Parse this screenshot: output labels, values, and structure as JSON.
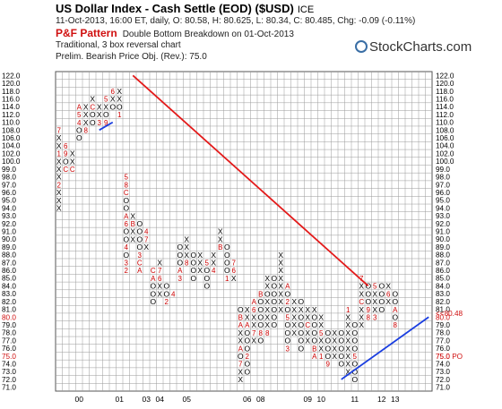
{
  "header": {
    "title": "US Dollar Index - Cash Settle (EOD) ($USD)",
    "exchange": "ICE",
    "quote": "11-Oct-2013, 16:00 ET, daily, O: 80.58, H: 80.625, L: 80.34, C: 80.485, Chg: -0.09 (-0.11%)",
    "pattern_label": "P&F Pattern",
    "pattern_text": "Double Bottom Breakdown on 01-Oct-2013",
    "method": "Traditional, 3 box reversal chart",
    "objective": "Prelim. Bearish Price Obj. (Rev.): 75.0",
    "brand": "StockCharts.com"
  },
  "colors": {
    "x_mark": "#000000",
    "o_mark": "#000000",
    "month_marker": "#cc0000",
    "red_trendline": "#e31a1a",
    "blue_trendline": "#1a3ee0",
    "grid": "#9a9a9a",
    "highlight_label": "#d01010"
  },
  "chart_data": {
    "type": "point-and-figure",
    "box_size": 1.0,
    "reversal": 3,
    "y_range": [
      71.0,
      122.0
    ],
    "y_ticks": [
      71.0,
      72.0,
      73.0,
      74.0,
      75.0,
      76.0,
      77.0,
      78.0,
      79.0,
      80.0,
      81.0,
      82.0,
      83.0,
      84.0,
      85.0,
      86.0,
      87.0,
      88.0,
      89.0,
      90.0,
      91.0,
      92.0,
      93.0,
      94.0,
      95.0,
      96.0,
      97.0,
      98.0,
      99.0,
      100.0,
      102.0,
      104.0,
      106.0,
      108.0,
      110.0,
      112.0,
      114.0,
      116.0,
      118.0,
      120.0,
      122.0
    ],
    "y_tick_labels": [
      "71.0",
      "72.0",
      "73.0",
      "74.0",
      "75.0",
      "76.0",
      "77.0",
      "78.0",
      "79.0",
      "80.0",
      "81.0",
      "82.0",
      "83.0",
      "84.0",
      "85.0",
      "86.0",
      "87.0",
      "88.0",
      "89.0",
      "90.0",
      "91.0",
      "92.0",
      "93.0",
      "94.0",
      "95.0",
      "96.0",
      "97.0",
      "98.0",
      "99.0",
      "100.0",
      "102.0",
      "104.0",
      "106.0",
      "108.0",
      "110.0",
      "112.0",
      "114.0",
      "116.0",
      "118.0",
      "120.0",
      "122.0"
    ],
    "highlighted_tick_labels": [
      "80.0",
      "75.0"
    ],
    "x_year_labels": [
      {
        "label": "00",
        "col": 3
      },
      {
        "label": "01",
        "col": 9
      },
      {
        "label": "03",
        "col": 13
      },
      {
        "label": "04",
        "col": 15
      },
      {
        "label": "05",
        "col": 19
      },
      {
        "label": "06",
        "col": 28
      },
      {
        "label": "08",
        "col": 30
      },
      {
        "label": "09",
        "col": 37
      },
      {
        "label": "10",
        "col": 39
      },
      {
        "label": "11",
        "col": 44
      },
      {
        "label": "12",
        "col": 48
      },
      {
        "label": "13",
        "col": 50
      }
    ],
    "right_annotations": [
      {
        "text": "<<80.48",
        "value": 80.48
      },
      {
        "text": "75.0 PO",
        "value": 75.0
      }
    ],
    "columns": [
      {
        "col": 0,
        "type": "X",
        "marks": [
          "X",
          "X",
          "X",
          "2",
          "X",
          "X",
          "X",
          "1",
          "X",
          "X",
          "7"
        ],
        "low": 94.0,
        "high": 104.0
      },
      {
        "col": 1,
        "type": "O",
        "marks": [
          "C",
          "O",
          "9",
          "6"
        ],
        "low": 99.0,
        "high": 102.0
      },
      {
        "col": 2,
        "type": "X",
        "marks": [
          "C",
          "X",
          "X"
        ],
        "low": 99.0,
        "high": 101.0
      },
      {
        "col": 3,
        "type": "O",
        "marks": [
          "O",
          "O",
          "4",
          "5",
          "A"
        ],
        "low": 106.0,
        "high": 114.0
      },
      {
        "col": 4,
        "type": "X",
        "marks": [
          "8",
          "X",
          "X",
          "X"
        ],
        "low": 108.0,
        "high": 116.0
      },
      {
        "col": 5,
        "type": "O",
        "marks": [
          "O",
          "O",
          "C",
          "X"
        ],
        "low": 110.0,
        "high": 116.0
      },
      {
        "col": 6,
        "type": "X",
        "marks": [
          "3",
          "X",
          "X"
        ],
        "low": 110.0,
        "high": 114.0
      },
      {
        "col": 7,
        "type": "O",
        "marks": [
          "9",
          "O",
          "X",
          "5"
        ],
        "low": 110.0,
        "high": 118.0
      },
      {
        "col": 8,
        "type": "X",
        "marks": [
          "O",
          "X",
          "6"
        ],
        "low": 114.0,
        "high": 118.0
      },
      {
        "col": 9,
        "type": "O",
        "marks": [
          "1",
          "O",
          "X",
          "X"
        ],
        "low": 112.0,
        "high": 120.0
      },
      {
        "col": 10,
        "type": "O",
        "marks": [
          "2",
          "3",
          "O",
          "4",
          "O",
          "O",
          "6",
          "A",
          "O",
          "O",
          "C",
          "8",
          "5"
        ],
        "low": 86.0,
        "high": 112.0
      },
      {
        "col": 11,
        "type": "X",
        "marks": [
          "X",
          "X",
          "B",
          "X"
        ],
        "low": 90.0,
        "high": 99.0
      },
      {
        "col": 12,
        "type": "O",
        "marks": [
          "A",
          "C",
          "3",
          "O",
          "O",
          "O",
          "O"
        ],
        "low": 86.0,
        "high": 98.0
      },
      {
        "col": 13,
        "type": "X",
        "marks": [
          "X",
          "7",
          "4"
        ],
        "low": 89.0,
        "high": 91.0
      },
      {
        "col": 14,
        "type": "O",
        "marks": [
          "O",
          "O",
          "O",
          "A",
          "C"
        ],
        "low": 82.0,
        "high": 89.0
      },
      {
        "col": 15,
        "type": "X",
        "marks": [
          "X",
          "X",
          "6",
          "7",
          "X"
        ],
        "low": 83.0,
        "high": 90.0
      },
      {
        "col": 16,
        "type": "O",
        "marks": [
          "2",
          "O",
          "O"
        ],
        "low": 82.0,
        "high": 84.0
      },
      {
        "col": 17,
        "type": "X",
        "marks": [
          "4"
        ],
        "low": 83.0,
        "high": 83.0
      },
      {
        "col": 18,
        "type": "O",
        "marks": [
          "3",
          "A",
          "O",
          "O",
          "O"
        ],
        "low": 85.0,
        "high": 90.0
      },
      {
        "col": 19,
        "type": "X",
        "marks": [
          "8",
          "X",
          "X",
          "X"
        ],
        "low": 87.0,
        "high": 90.0
      },
      {
        "col": 20,
        "type": "O",
        "marks": [
          "O",
          "O",
          "O",
          "O"
        ],
        "low": 85.0,
        "high": 90.0
      },
      {
        "col": 21,
        "type": "X",
        "marks": [
          "X",
          "X",
          "X"
        ],
        "low": 86.0,
        "high": 89.0
      },
      {
        "col": 22,
        "type": "O",
        "marks": [
          "O",
          "O",
          "O",
          "5"
        ],
        "low": 84.0,
        "high": 88.0
      },
      {
        "col": 23,
        "type": "X",
        "marks": [
          "4",
          "X",
          "X"
        ],
        "low": 86.0,
        "high": 91.0
      },
      {
        "col": 24,
        "type": "O",
        "marks": [
          "B",
          "X",
          "X"
        ],
        "low": 89.0,
        "high": 92.0
      },
      {
        "col": 25,
        "type": "O",
        "marks": [
          "1",
          "O",
          "O",
          "O",
          "O"
        ],
        "low": 85.0,
        "high": 91.0
      },
      {
        "col": 26,
        "type": "X",
        "marks": [
          "X",
          "6",
          "7"
        ],
        "low": 85.0,
        "high": 87.0
      },
      {
        "col": 27,
        "type": "X",
        "marks": [
          "X",
          "X",
          "7",
          "O",
          "A",
          "X",
          "X",
          "A",
          "B",
          "O"
        ],
        "low": 72.0,
        "high": 86.0
      },
      {
        "col": 28,
        "type": "O",
        "marks": [
          "O",
          "O",
          "2",
          "O",
          "O",
          "O",
          "A",
          "X",
          "X"
        ],
        "low": 73.0,
        "high": 81.0
      },
      {
        "col": 29,
        "type": "X",
        "marks": [
          "X",
          "7",
          "X",
          "X",
          "6",
          "A"
        ],
        "low": 77.0,
        "high": 86.0
      },
      {
        "col": 30,
        "type": "O",
        "marks": [
          "O",
          "8",
          "O",
          "O",
          "O",
          "O",
          "B"
        ],
        "low": 77.0,
        "high": 89.0
      },
      {
        "col": 31,
        "type": "X",
        "marks": [
          "8",
          "X",
          "X",
          "X",
          "X",
          "O",
          "X",
          "X"
        ],
        "low": 78.0,
        "high": 88.0
      },
      {
        "col": 32,
        "type": "O",
        "marks": [
          "O",
          "O",
          "O",
          "O",
          "O",
          "O",
          "O"
        ],
        "low": 79.0,
        "high": 89.0
      },
      {
        "col": 33,
        "type": "X",
        "marks": [
          "X",
          "X",
          "X",
          "X",
          "X",
          "X",
          "X",
          "X"
        ],
        "low": 81.0,
        "high": 89.0
      },
      {
        "col": 34,
        "type": "O",
        "marks": [
          "3",
          "O",
          "O",
          "O",
          "5",
          "O",
          "2",
          "O",
          "A"
        ],
        "low": 76.0,
        "high": 89.0
      },
      {
        "col": 35,
        "type": "X",
        "marks": [
          "X",
          "X",
          "X",
          "X",
          "X"
        ],
        "low": 78.0,
        "high": 84.0
      },
      {
        "col": 36,
        "type": "O",
        "marks": [
          "O",
          "O",
          "O",
          "O",
          "O",
          "X",
          "O"
        ],
        "low": 76.0,
        "high": 86.0
      },
      {
        "col": 37,
        "type": "X",
        "marks": [
          "X",
          "X",
          "C",
          "X",
          "X"
        ],
        "low": 77.0,
        "high": 83.0
      },
      {
        "col": 38,
        "type": "O",
        "marks": [
          "A",
          "B",
          "O",
          "O",
          "O",
          "O",
          "X"
        ],
        "low": 75.0,
        "high": 82.0
      },
      {
        "col": 39,
        "type": "X",
        "marks": [
          "1",
          "X",
          "X",
          "5",
          "X",
          "X"
        ],
        "low": 75.0,
        "high": 80.0
      },
      {
        "col": 40,
        "type": "O",
        "marks": [
          "9",
          "O",
          "O",
          "O",
          "O"
        ],
        "low": 74.0,
        "high": 78.0
      },
      {
        "col": 41,
        "type": "X",
        "marks": [
          "X",
          "X",
          "X",
          "X"
        ],
        "low": 75.0,
        "high": 78.0
      },
      {
        "col": 42,
        "type": "O",
        "marks": [
          "O",
          "O",
          "O",
          "O",
          "O"
        ],
        "low": 74.0,
        "high": 79.0
      },
      {
        "col": 43,
        "type": "X",
        "marks": [
          "X",
          "X",
          "X",
          "X",
          "X",
          "X",
          "X",
          "X",
          "1"
        ],
        "low": 73.0,
        "high": 81.0
      },
      {
        "col": 44,
        "type": "O",
        "marks": [
          "O",
          "O",
          "O",
          "5",
          "O",
          "O",
          "O",
          "O"
        ],
        "low": 72.0,
        "high": 81.0
      },
      {
        "col": 45,
        "type": "X",
        "marks": [
          "X",
          "X",
          "X",
          "C",
          "X",
          "X",
          "7"
        ],
        "low": 79.0,
        "high": 85.0
      },
      {
        "col": 46,
        "type": "O",
        "marks": [
          "8",
          "9",
          "O",
          "O",
          "O"
        ],
        "low": 80.0,
        "high": 84.0
      },
      {
        "col": 47,
        "type": "X",
        "marks": [
          "3",
          "X",
          "X",
          "X",
          "5"
        ],
        "low": 80.0,
        "high": 85.0
      },
      {
        "col": 48,
        "type": "O",
        "marks": [
          "O",
          "O",
          "O",
          "O"
        ],
        "low": 81.0,
        "high": 84.0
      },
      {
        "col": 49,
        "type": "X",
        "marks": [
          "X",
          "6",
          "X"
        ],
        "low": 82.0,
        "high": 84.0
      },
      {
        "col": 50,
        "type": "O",
        "marks": [
          "8",
          "O",
          "A",
          "O",
          "O"
        ],
        "low": 79.0,
        "high": 84.0
      }
    ],
    "red_trendline": {
      "from": {
        "col": 11,
        "value": 122.0
      },
      "to": {
        "col": 46,
        "value": 84.0
      }
    },
    "blue_trendlines": [
      {
        "from": {
          "col": 6,
          "value": 108.0
        },
        "to": {
          "col": 8,
          "value": 110.0
        }
      },
      {
        "from": {
          "col": 42,
          "value": 72.0
        },
        "to": {
          "col": 55,
          "value": 80.0
        }
      }
    ]
  }
}
